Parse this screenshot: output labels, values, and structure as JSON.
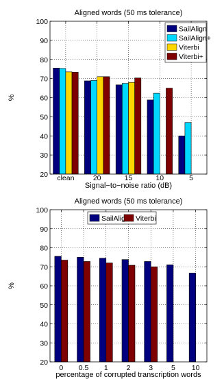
{
  "chart_data": [
    {
      "type": "bar",
      "title": "Aligned words (50 ms tolerance)",
      "xlabel": "Signal−to−noise ratio (dB)",
      "ylabel": "%",
      "ylim": [
        20,
        100
      ],
      "yticks": [
        "20",
        "30",
        "40",
        "50",
        "60",
        "70",
        "80",
        "90",
        "100"
      ],
      "categories": [
        "clean",
        "20",
        "15",
        "10",
        "5"
      ],
      "grid": true,
      "legend_position": "top-right",
      "series": [
        {
          "name": "SailAlign",
          "color": "#00007f",
          "values": [
            75.5,
            68.8,
            66.7,
            58.8,
            40.0
          ]
        },
        {
          "name": "SailAlign+",
          "color": "#00d8ff",
          "values": [
            75.3,
            69.0,
            67.5,
            62.3,
            47.0
          ]
        },
        {
          "name": "Viterbi",
          "color": "#ffd700",
          "values": [
            73.5,
            71.0,
            68.0,
            null,
            null
          ]
        },
        {
          "name": "Viterbi+",
          "color": "#7f0000",
          "values": [
            73.3,
            71.0,
            70.3,
            65.0,
            null
          ]
        }
      ]
    },
    {
      "type": "bar",
      "title": "Aligned words (50 ms tolerance)",
      "xlabel": "percentage of corrupted transcription words",
      "ylabel": "%",
      "ylim": [
        20,
        100
      ],
      "yticks": [
        "20",
        "30",
        "40",
        "50",
        "60",
        "70",
        "80",
        "90",
        "100"
      ],
      "categories": [
        "0",
        "0.5",
        "1",
        "2",
        "3",
        "5",
        "10"
      ],
      "grid": true,
      "legend_position": "top-center",
      "series": [
        {
          "name": "SailAlign",
          "color": "#00007f",
          "values": [
            75.5,
            75.0,
            74.5,
            73.8,
            72.8,
            71.0,
            66.7
          ]
        },
        {
          "name": "Viterbi",
          "color": "#7f0000",
          "values": [
            73.5,
            72.8,
            72.0,
            70.8,
            70.0,
            null,
            null
          ]
        }
      ]
    }
  ]
}
